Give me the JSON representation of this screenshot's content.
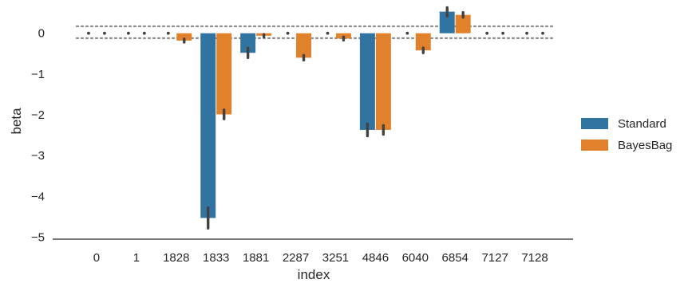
{
  "chart_data": {
    "type": "bar",
    "xlabel": "index",
    "ylabel": "beta",
    "categories": [
      "0",
      "1",
      "1828",
      "1833",
      "1881",
      "2287",
      "3251",
      "4846",
      "6040",
      "6854",
      "7127",
      "7128"
    ],
    "ylim": [
      -5.05,
      0.62
    ],
    "yticks": [
      0,
      -1,
      -2,
      -3,
      -4,
      -5
    ],
    "ytick_labels": [
      "0",
      "−1",
      "−2",
      "−3",
      "−4",
      "−5"
    ],
    "grid": false,
    "legend_position": "right",
    "reference_lines": [
      0.17,
      -0.12
    ],
    "series": [
      {
        "name": "Standard",
        "color": "#3274a1",
        "values": [
          0,
          0,
          0,
          -4.53,
          -0.48,
          0,
          0,
          -2.37,
          0,
          0.53,
          0,
          0
        ],
        "error": [
          null,
          null,
          null,
          [
            -4.78,
            -4.28
          ],
          [
            -0.6,
            -0.36
          ],
          null,
          null,
          [
            -2.52,
            -2.22
          ],
          null,
          [
            0.42,
            0.63
          ],
          null,
          null
        ]
      },
      {
        "name": "BayesBag",
        "color": "#e1812c",
        "values": [
          0,
          0,
          -0.18,
          -1.99,
          -0.06,
          -0.6,
          -0.13,
          -2.37,
          -0.42,
          0.45,
          0,
          0
        ],
        "error": [
          null,
          null,
          [
            -0.22,
            -0.14
          ],
          [
            -2.1,
            -1.88
          ],
          [
            -0.09,
            -0.03
          ],
          [
            -0.66,
            -0.54
          ],
          [
            -0.17,
            -0.09
          ],
          [
            -2.48,
            -2.26
          ],
          [
            -0.48,
            -0.36
          ],
          [
            0.39,
            0.51
          ],
          null,
          null
        ]
      }
    ]
  }
}
